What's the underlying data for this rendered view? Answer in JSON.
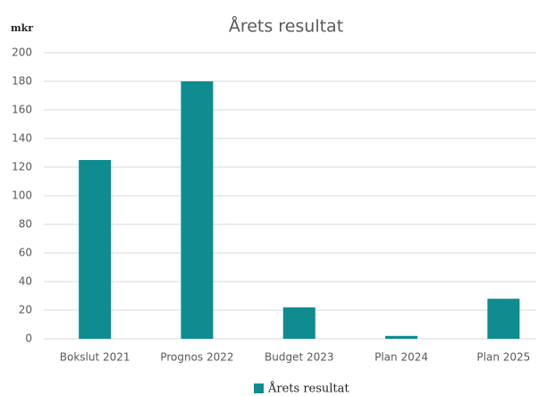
{
  "chart_data": {
    "type": "bar",
    "title": "Årets resultat",
    "y_label": "mkr",
    "categories": [
      "Bokslut 2021",
      "Prognos 2022",
      "Budget 2023",
      "Plan 2024",
      "Plan 2025"
    ],
    "series": [
      {
        "name": "Årets resultat",
        "color": "#0e8c8f",
        "values": [
          125,
          180,
          22,
          2,
          28
        ]
      }
    ],
    "ylim": [
      0,
      200
    ],
    "yticks": [
      0,
      20,
      40,
      60,
      80,
      100,
      120,
      140,
      160,
      180,
      200
    ],
    "grid": true,
    "legend": "bottom"
  }
}
